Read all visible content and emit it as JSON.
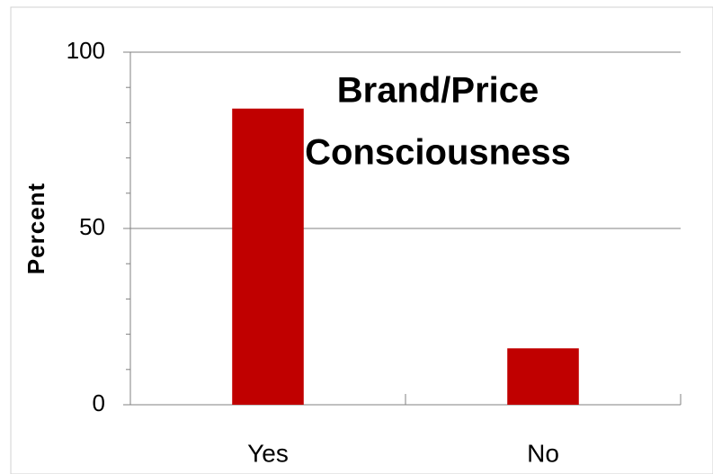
{
  "chart_data": {
    "type": "bar",
    "title": [
      "Brand/Price",
      "Consciousness"
    ],
    "y_label": "Percent",
    "categories": [
      "Yes",
      "No"
    ],
    "values": [
      84,
      16
    ],
    "color": "#c00000",
    "ylim": [
      0,
      100
    ],
    "yticks": [
      0,
      50,
      100
    ],
    "minor_yticks": [
      10,
      20,
      30,
      40,
      60,
      70,
      80,
      90
    ],
    "grid": true
  }
}
